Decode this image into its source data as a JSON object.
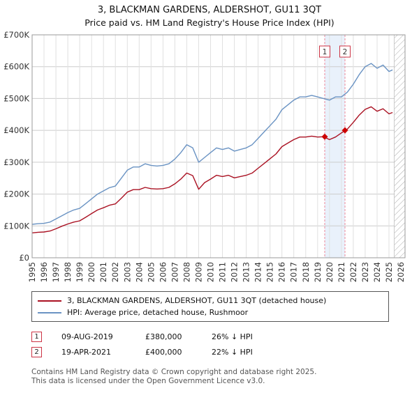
{
  "title": "3, BLACKMAN GARDENS, ALDERSHOT, GU11 3QT",
  "subtitle": "Price paid vs. HM Land Registry's House Price Index (HPI)",
  "chart_data": {
    "type": "line",
    "unit": "GBP thousands",
    "ylim": [
      0,
      700
    ],
    "yticks": [
      "£0",
      "£100K",
      "£200K",
      "£300K",
      "£400K",
      "£500K",
      "£600K",
      "£700K"
    ],
    "xticks": [
      1995,
      1996,
      1997,
      1998,
      1999,
      2000,
      2001,
      2002,
      2003,
      2004,
      2005,
      2006,
      2007,
      2008,
      2009,
      2010,
      2011,
      2012,
      2013,
      2014,
      2015,
      2016,
      2017,
      2018,
      2019,
      2020,
      2021,
      2022,
      2023,
      2024,
      2025,
      2026
    ],
    "x": [
      1995,
      1995.5,
      1996,
      1996.5,
      1997,
      1997.5,
      1998,
      1998.5,
      1999,
      1999.5,
      2000,
      2000.5,
      2001,
      2001.5,
      2002,
      2002.5,
      2003,
      2003.5,
      2004,
      2004.5,
      2005,
      2005.5,
      2006,
      2006.5,
      2007,
      2007.5,
      2008,
      2008.5,
      2009,
      2009.5,
      2010,
      2010.5,
      2011,
      2011.5,
      2012,
      2012.5,
      2013,
      2013.5,
      2014,
      2014.5,
      2015,
      2015.5,
      2016,
      2016.5,
      2017,
      2017.5,
      2018,
      2018.5,
      2019,
      2019.5,
      2020,
      2020.5,
      2021,
      2021.5,
      2022,
      2022.5,
      2023,
      2023.5,
      2024,
      2024.5,
      2025,
      2025.3
    ],
    "series": [
      {
        "name": "3, BLACKMAN GARDENS, ALDERSHOT, GU11 3QT (detached house)",
        "color": "#aa1122",
        "values": [
          78,
          80,
          81,
          84,
          91,
          99,
          106,
          112,
          116,
          127,
          139,
          150,
          157,
          165,
          169,
          187,
          206,
          214,
          214,
          221,
          217,
          216,
          217,
          221,
          232,
          247,
          266,
          258,
          215,
          236,
          247,
          259,
          255,
          259,
          251,
          255,
          259,
          266,
          281,
          296,
          311,
          326,
          349,
          360,
          371,
          379,
          379,
          382,
          379,
          380,
          371,
          379,
          392,
          404,
          425,
          448,
          466,
          474,
          460,
          468,
          452,
          456
        ]
      },
      {
        "name": "HPI: Average price, detached house, Rushmoor",
        "color": "#6a93c3",
        "values": [
          105,
          107,
          108,
          112,
          122,
          132,
          142,
          150,
          155,
          170,
          185,
          200,
          210,
          220,
          225,
          250,
          275,
          285,
          285,
          295,
          290,
          288,
          290,
          295,
          310,
          330,
          355,
          345,
          300,
          315,
          330,
          345,
          340,
          345,
          335,
          340,
          345,
          355,
          375,
          395,
          415,
          435,
          465,
          480,
          495,
          505,
          505,
          510,
          505,
          500,
          495,
          505,
          505,
          520,
          545,
          575,
          600,
          610,
          595,
          605,
          585,
          590
        ]
      }
    ],
    "markers": [
      {
        "label": "1",
        "x": 2019.6,
        "y": 380
      },
      {
        "label": "2",
        "x": 2021.3,
        "y": 400
      }
    ],
    "band_color": "#e9f1fb",
    "sale_line_color": "#ee8899",
    "hatch_start": 2025.45,
    "grid": true,
    "legend_position": "bottom"
  },
  "legend": [
    {
      "label": "3, BLACKMAN GARDENS, ALDERSHOT, GU11 3QT (detached house)",
      "color": "#aa1122"
    },
    {
      "label": "HPI: Average price, detached house, Rushmoor",
      "color": "#6a93c3"
    }
  ],
  "transactions": [
    {
      "num": "1",
      "date": "09-AUG-2019",
      "price": "£380,000",
      "hpi": "26% ↓ HPI"
    },
    {
      "num": "2",
      "date": "19-APR-2021",
      "price": "£400,000",
      "hpi": "22% ↓ HPI"
    }
  ],
  "footer": {
    "line1": "Contains HM Land Registry data © Crown copyright and database right 2025.",
    "line2": "This data is licensed under the Open Government Licence v3.0."
  }
}
